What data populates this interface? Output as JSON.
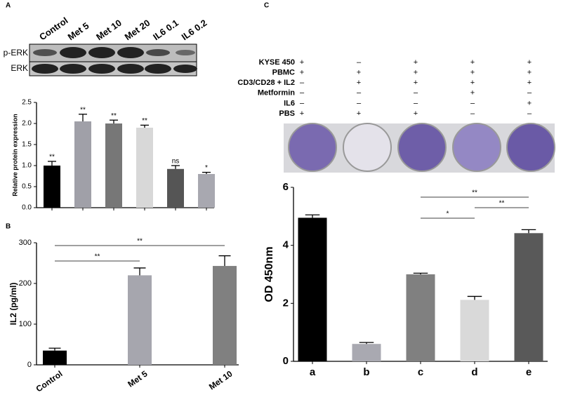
{
  "chart_data": [
    {
      "type": "bar",
      "panel": "A",
      "blot_rows": [
        "p-ERK",
        "ERK"
      ],
      "categories": [
        "Control",
        "Met 5",
        "Met 10",
        "Met 20",
        "IL6 0.1",
        "IL6 0.2"
      ],
      "values": [
        1.0,
        2.05,
        2.0,
        1.9,
        0.92,
        0.8
      ],
      "errors": [
        0.1,
        0.17,
        0.08,
        0.06,
        0.08,
        0.04
      ],
      "significance": [
        "**",
        "**",
        "**",
        "**",
        "ns",
        "*"
      ],
      "colors": [
        "#000000",
        "#a0a0a8",
        "#777777",
        "#d8d8d8",
        "#555555",
        "#a8a8b0"
      ],
      "ylabel": "Relative protein expression",
      "ylim": [
        0,
        2.5
      ],
      "yticks": [
        {
          "value": 0,
          "label": "0.0"
        },
        {
          "value": 0.5,
          "label": "0.5"
        },
        {
          "value": 1,
          "label": "1.0"
        },
        {
          "value": 1.5,
          "label": "1.5"
        },
        {
          "value": 2,
          "label": "2.0"
        },
        {
          "value": 2.5,
          "label": "2.5"
        }
      ]
    },
    {
      "type": "bar",
      "panel": "B",
      "categories": [
        "Control",
        "Met 5",
        "Met 10"
      ],
      "values": [
        35,
        220,
        243
      ],
      "errors": [
        6,
        18,
        25
      ],
      "colors": [
        "#000000",
        "#a6a6ae",
        "#808080"
      ],
      "ylabel": "IL2 (pg/ml)",
      "ylim": [
        0,
        300
      ],
      "yticks": [
        0,
        100,
        200,
        300
      ],
      "brackets": [
        {
          "from": 0,
          "to": 1,
          "label": "**"
        },
        {
          "from": 0,
          "to": 2,
          "label": "**"
        }
      ]
    },
    {
      "type": "bar",
      "panel": "C",
      "conditions": [
        {
          "label": "KYSE 450",
          "marks": [
            "+",
            "–",
            "+",
            "+",
            "+"
          ]
        },
        {
          "label": "PBMC",
          "marks": [
            "+",
            "+",
            "+",
            "+",
            "+"
          ]
        },
        {
          "label": "CD3/CD28 + IL2",
          "marks": [
            "–",
            "+",
            "+",
            "+",
            "+"
          ]
        },
        {
          "label": "Metformin",
          "marks": [
            "–",
            "–",
            "–",
            "+",
            "–"
          ]
        },
        {
          "label": "IL6",
          "marks": [
            "–",
            "–",
            "–",
            "–",
            "+"
          ]
        },
        {
          "label": "PBS",
          "marks": [
            "+",
            "+",
            "+",
            "–",
            "–"
          ]
        }
      ],
      "categories": [
        "a",
        "b",
        "c",
        "d",
        "e"
      ],
      "values": [
        4.95,
        0.6,
        3.0,
        2.12,
        4.42
      ],
      "errors": [
        0.1,
        0.05,
        0.04,
        0.12,
        0.12
      ],
      "colors": [
        "#000000",
        "#a9a9b1",
        "#808080",
        "#d9d9d9",
        "#595959"
      ],
      "ylabel": "OD 450nm",
      "ylim": [
        0,
        6
      ],
      "yticks": [
        0,
        2,
        4,
        6
      ],
      "brackets": [
        {
          "from": 2,
          "to": 4,
          "label": "**"
        },
        {
          "from": 3,
          "to": 4,
          "label": "**"
        },
        {
          "from": 2,
          "to": 3,
          "label": "*"
        }
      ]
    }
  ]
}
